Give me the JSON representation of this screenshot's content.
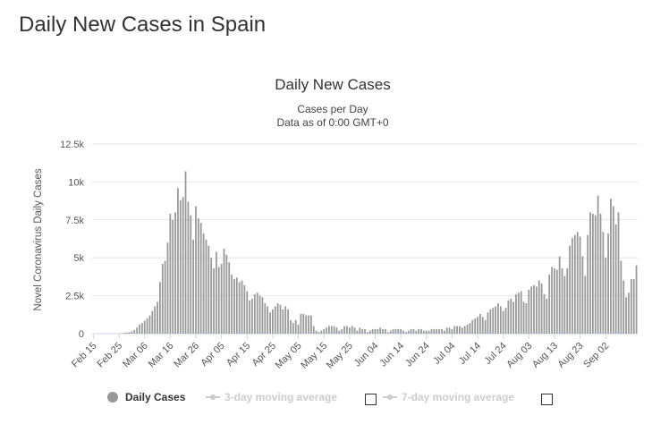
{
  "page": {
    "heading": "Daily New Cases in Spain"
  },
  "chart_data": {
    "type": "bar",
    "title": "Daily New Cases",
    "subtitle_line1": "Cases per Day",
    "subtitle_line2": "Data as of 0:00 GMT+0",
    "ylabel": "Novel Coronavirus Daily Cases",
    "xlabel": "",
    "ylim": [
      0,
      12500
    ],
    "yticks": [
      "0",
      "2.5k",
      "5k",
      "7.5k",
      "10k",
      "12.5k"
    ],
    "ytick_values": [
      0,
      2500,
      5000,
      7500,
      10000,
      12500
    ],
    "grid": true,
    "bar_color": "#999999",
    "start_date": "Feb 15",
    "xtick_labels": [
      "Feb 15",
      "Feb 25",
      "Mar 06",
      "Mar 16",
      "Mar 26",
      "Apr 05",
      "Apr 15",
      "Apr 25",
      "May 05",
      "May 15",
      "May 25",
      "Jun 04",
      "Jun 14",
      "Jun 24",
      "Jul 04",
      "Jul 14",
      "Jul 24",
      "Aug 03",
      "Aug 13",
      "Aug 23",
      "Sep 02"
    ],
    "values": [
      0,
      0,
      0,
      0,
      0,
      0,
      0,
      0,
      0,
      0,
      0,
      20,
      50,
      80,
      100,
      150,
      250,
      400,
      600,
      700,
      850,
      1000,
      1200,
      1500,
      1800,
      2100,
      3400,
      4600,
      4800,
      6000,
      7900,
      7500,
      8000,
      9600,
      8800,
      9000,
      10700,
      8700,
      7800,
      6200,
      8400,
      7600,
      7300,
      6600,
      6200,
      5800,
      5000,
      4300,
      5400,
      4400,
      4600,
      5600,
      5200,
      4700,
      3900,
      3600,
      3700,
      3400,
      3500,
      3200,
      2800,
      2200,
      2300,
      2600,
      2700,
      2500,
      2400,
      2000,
      1800,
      1400,
      1600,
      1800,
      2000,
      1900,
      1600,
      1800,
      1600,
      900,
      700,
      900,
      600,
      1300,
      1300,
      1200,
      1200,
      1200,
      500,
      200,
      100,
      200,
      300,
      400,
      500,
      500,
      500,
      400,
      200,
      300,
      500,
      500,
      400,
      500,
      400,
      200,
      400,
      300,
      300,
      100,
      200,
      300,
      300,
      300,
      400,
      300,
      300,
      100,
      200,
      300,
      300,
      300,
      300,
      200,
      100,
      200,
      300,
      300,
      200,
      300,
      300,
      200,
      200,
      200,
      300,
      300,
      300,
      300,
      300,
      200,
      400,
      400,
      300,
      500,
      500,
      500,
      400,
      500,
      600,
      700,
      900,
      1000,
      1100,
      1300,
      1100,
      900,
      1400,
      1600,
      1700,
      1800,
      2000,
      1800,
      1500,
      1700,
      2200,
      2300,
      2100,
      2600,
      2700,
      2800,
      2100,
      2000,
      2900,
      3100,
      3200,
      3100,
      3500,
      3300,
      2600,
      2300,
      3900,
      4400,
      4300,
      4200,
      5100,
      4300,
      3800,
      4300,
      5800,
      6300,
      6500,
      6700,
      6400,
      5100,
      3800,
      6500,
      8000,
      7900,
      7800,
      9100,
      7900,
      6700,
      5000,
      6600,
      8900,
      8400,
      7200,
      8000,
      4800,
      3500,
      2400,
      2700,
      3600,
      3600,
      4500
    ]
  },
  "legend": {
    "items": [
      {
        "label": "Daily Cases",
        "active": true
      },
      {
        "label": "3-day moving average",
        "active": false
      },
      {
        "label": "7-day moving average",
        "active": false
      }
    ]
  }
}
